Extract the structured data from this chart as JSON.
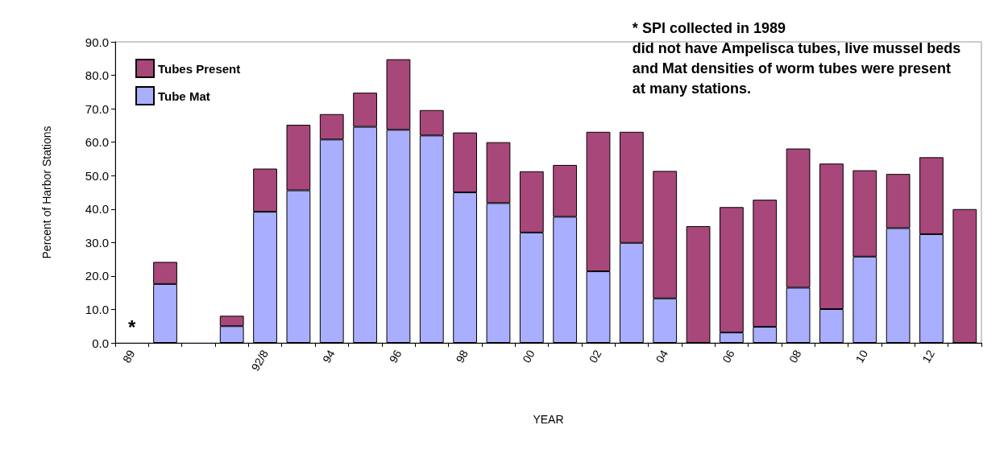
{
  "chart_data": {
    "type": "bar",
    "stacked": true,
    "xlabel": "YEAR",
    "ylabel": "Percent of Harbor Stations",
    "categories": [
      "89",
      null,
      null,
      null,
      "92/8",
      null,
      "94",
      null,
      "96",
      null,
      "98",
      null,
      "00",
      null,
      "02",
      null,
      "04",
      null,
      "06",
      null,
      "08",
      null,
      "10",
      null,
      "12",
      null
    ],
    "series": [
      {
        "name": "Tube Mat",
        "color": "#a9aefe",
        "values": [
          null,
          17.6,
          null,
          5.0,
          39.2,
          45.6,
          60.8,
          64.6,
          63.7,
          62.0,
          45.0,
          41.8,
          33.0,
          37.7,
          21.4,
          29.9,
          13.3,
          0,
          3.1,
          4.8,
          16.5,
          10.1,
          25.8,
          34.3,
          32.5,
          0
        ]
      },
      {
        "name": "Tubes Present",
        "color": "#a8477a",
        "values": [
          null,
          6.6,
          null,
          3.1,
          12.9,
          19.6,
          7.6,
          10.2,
          21.1,
          7.6,
          17.9,
          18.2,
          18.3,
          15.5,
          41.7,
          33.2,
          38.1,
          34.9,
          37.5,
          38.0,
          41.6,
          43.5,
          25.8,
          16.2,
          23.0,
          40.0
        ]
      }
    ],
    "ylim": [
      0,
      90
    ],
    "yticks": [
      {
        "value": 0,
        "label": "0.0"
      },
      {
        "value": 10,
        "label": "10.0"
      },
      {
        "value": 20,
        "label": "20.0"
      },
      {
        "value": 30,
        "label": "30.0"
      },
      {
        "value": 40,
        "label": "40.0"
      },
      {
        "value": 50,
        "label": "50.0"
      },
      {
        "value": 60,
        "label": "60.0"
      },
      {
        "value": 70,
        "label": "70.0"
      },
      {
        "value": 80,
        "label": "80.0"
      },
      {
        "value": 90,
        "label": "90.0"
      }
    ],
    "grid": false,
    "legend": "top left",
    "annotations": [
      "*",
      "* SPI collected in 1989\ndid not have Ampelisca tubes, live mussel beds\nand Mat densities of worm tubes were present\nat many stations."
    ]
  }
}
